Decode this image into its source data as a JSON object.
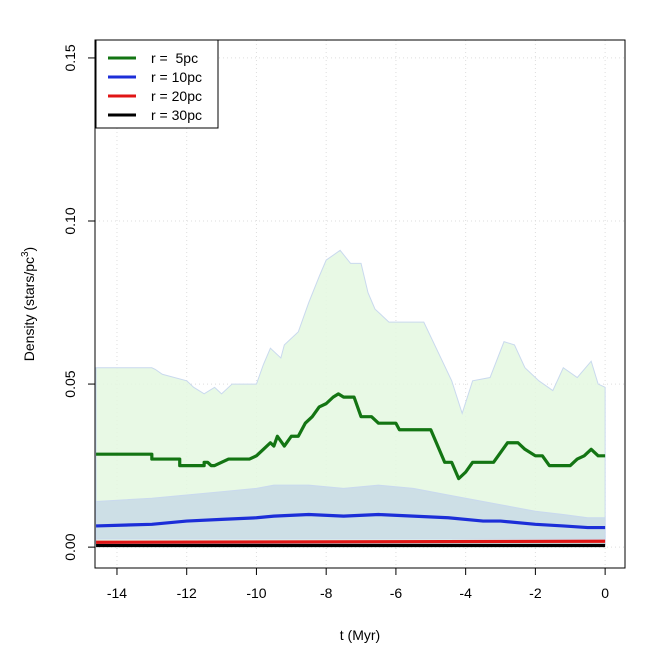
{
  "chart_data": {
    "type": "line",
    "xlabel": "t (Myr)",
    "ylabel": [
      "Density (stars/pc",
      "3",
      ")"
    ],
    "xlim": [
      -14.63,
      0.57
    ],
    "ylim": [
      -0.0064,
      0.1555
    ],
    "xticks": [
      -14,
      -12,
      -10,
      -8,
      -6,
      -4,
      -2,
      0
    ],
    "yticks": [
      {
        "value": 0,
        "label": "0.00"
      },
      {
        "value": 0.05,
        "label": "0.05"
      },
      {
        "value": 0.1,
        "label": "0.10"
      },
      {
        "value": 0.15,
        "label": "0.15"
      }
    ],
    "grid": true,
    "legend": "top-left",
    "series": [
      {
        "name": "r =  5pc",
        "color": "#137513",
        "x": [
          -14.6,
          -13,
          -13,
          -12.2,
          -12.2,
          -11.5,
          -11.5,
          -11.4,
          -11.3,
          -11.2,
          -10.8,
          -10.2,
          -10,
          -9.8,
          -9.6,
          -9.5,
          -9.4,
          -9.2,
          -9.0,
          -8.8,
          -8.6,
          -8.4,
          -8.2,
          -8.0,
          -7.8,
          -7.65,
          -7.5,
          -7.2,
          -7.0,
          -6.7,
          -6.5,
          -6.0,
          -5.9,
          -5.0,
          -4.6,
          -4.4,
          -4.2,
          -4.0,
          -3.8,
          -3.2,
          -2.8,
          -2.5,
          -2.3,
          -2.0,
          -1.8,
          -1.6,
          -1.0,
          -0.8,
          -0.6,
          -0.4,
          -0.2,
          0
        ],
        "values": [
          0.0285,
          0.0285,
          0.027,
          0.027,
          0.025,
          0.025,
          0.026,
          0.026,
          0.025,
          0.025,
          0.027,
          0.027,
          0.028,
          0.03,
          0.032,
          0.031,
          0.034,
          0.031,
          0.034,
          0.034,
          0.038,
          0.04,
          0.043,
          0.044,
          0.046,
          0.047,
          0.046,
          0.046,
          0.04,
          0.04,
          0.038,
          0.038,
          0.036,
          0.036,
          0.026,
          0.026,
          0.021,
          0.023,
          0.026,
          0.026,
          0.032,
          0.032,
          0.03,
          0.028,
          0.028,
          0.025,
          0.025,
          0.027,
          0.028,
          0.03,
          0.028,
          0.028
        ],
        "band": {
          "color": "#e4f8e1",
          "x": [
            -14.6,
            -13,
            -12.9,
            -12.7,
            -12,
            -11.8,
            -11.5,
            -11.2,
            -11,
            -10.7,
            -10,
            -9.8,
            -9.6,
            -9.3,
            -9.2,
            -8.8,
            -8.5,
            -8.2,
            -8.0,
            -7.6,
            -7.3,
            -7.0,
            -6.8,
            -6.6,
            -6.2,
            -5.2,
            -4.8,
            -4.4,
            -4.1,
            -3.8,
            -3.3,
            -2.9,
            -2.6,
            -2.3,
            -1.9,
            -1.5,
            -1.2,
            -0.8,
            -0.4,
            -0.2,
            0
          ],
          "upper": [
            0.055,
            0.055,
            0.0545,
            0.053,
            0.051,
            0.049,
            0.047,
            0.049,
            0.047,
            0.05,
            0.05,
            0.056,
            0.061,
            0.058,
            0.062,
            0.066,
            0.075,
            0.083,
            0.088,
            0.091,
            0.087,
            0.087,
            0.078,
            0.073,
            0.069,
            0.069,
            0.06,
            0.051,
            0.041,
            0.051,
            0.052,
            0.063,
            0.062,
            0.055,
            0.051,
            0.048,
            0.055,
            0.052,
            0.057,
            0.05,
            0.049
          ],
          "lower": [
            0.001,
            0.001,
            0.001,
            0.001,
            0.001,
            0.001,
            0.001,
            0.001,
            0.001,
            0.001,
            0.001,
            0.001,
            0.001,
            0.001,
            0.001,
            0.001,
            0.001,
            0.001,
            0.001,
            0.001,
            0.001,
            0.001,
            0.001,
            0.001,
            0.001,
            0.001,
            0.001,
            0.001,
            0.001,
            0.001,
            0.001,
            0.001,
            0.001,
            0.001,
            0.001,
            0.001,
            0.001,
            0.001,
            0.001,
            0.001,
            0.001
          ]
        }
      },
      {
        "name": "r = 10pc",
        "color": "#1c2ed8",
        "x": [
          -14.6,
          -13,
          -12,
          -11,
          -10,
          -9.5,
          -8.5,
          -7.5,
          -6.5,
          -5.5,
          -4.5,
          -3.5,
          -3,
          -2,
          -1.2,
          -0.5,
          0
        ],
        "values": [
          0.0065,
          0.007,
          0.008,
          0.0085,
          0.009,
          0.0095,
          0.01,
          0.0095,
          0.01,
          0.0095,
          0.009,
          0.008,
          0.008,
          0.007,
          0.0065,
          0.006,
          0.006
        ],
        "band": {
          "color": "#c8dbe6",
          "x": [
            -14.6,
            -13,
            -12,
            -11,
            -10,
            -9.5,
            -8.5,
            -7.5,
            -6.5,
            -5.5,
            -4.5,
            -3.5,
            -3,
            -2,
            -1.2,
            -0.5,
            0
          ],
          "upper": [
            0.014,
            0.015,
            0.016,
            0.017,
            0.018,
            0.019,
            0.019,
            0.018,
            0.019,
            0.018,
            0.016,
            0.014,
            0.013,
            0.011,
            0.01,
            0.009,
            0.009
          ],
          "lower": [
            0.0025,
            0.0025,
            0.0025,
            0.0025,
            0.0025,
            0.0025,
            0.0025,
            0.0025,
            0.0025,
            0.0025,
            0.0025,
            0.0025,
            0.0025,
            0.0025,
            0.0025,
            0.0025,
            0.0025
          ]
        }
      },
      {
        "name": "r = 20pc",
        "color": "#e01515",
        "x": [
          -14.6,
          0
        ],
        "values": [
          0.0015,
          0.0018
        ]
      },
      {
        "name": "r = 30pc",
        "color": "#000000",
        "x": [
          -14.6,
          0
        ],
        "values": [
          0.0005,
          0.0005
        ]
      }
    ]
  }
}
